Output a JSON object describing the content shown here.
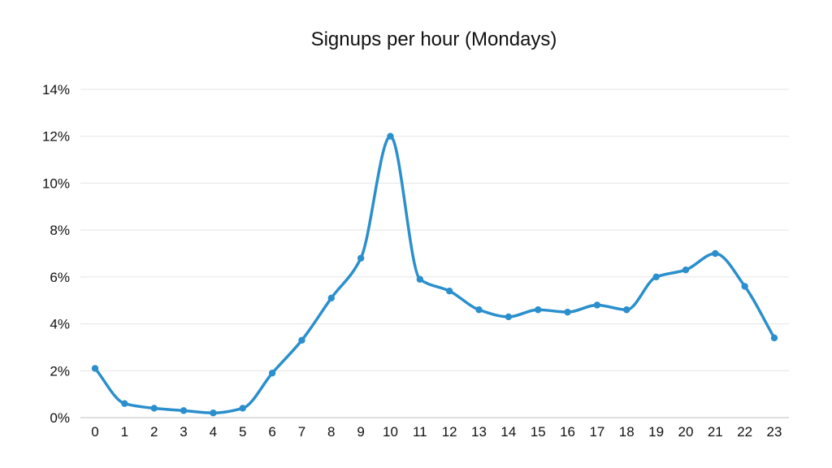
{
  "chart_data": {
    "type": "line",
    "title": "Signups per hour (Mondays)",
    "xlabel": "",
    "ylabel": "",
    "x": [
      0,
      1,
      2,
      3,
      4,
      5,
      6,
      7,
      8,
      9,
      10,
      11,
      12,
      13,
      14,
      15,
      16,
      17,
      18,
      19,
      20,
      21,
      22,
      23
    ],
    "x_tick_labels": [
      "0",
      "1",
      "2",
      "3",
      "4",
      "5",
      "6",
      "7",
      "8",
      "9",
      "10",
      "11",
      "12",
      "13",
      "14",
      "15",
      "16",
      "17",
      "18",
      "19",
      "20",
      "21",
      "22",
      "23"
    ],
    "series": [
      {
        "values": [
          2.1,
          0.6,
          0.4,
          0.3,
          0.2,
          0.4,
          1.9,
          3.3,
          5.1,
          6.8,
          12.0,
          5.9,
          5.4,
          4.6,
          4.3,
          4.6,
          4.5,
          4.8,
          4.6,
          6.0,
          6.3,
          7.0,
          5.6,
          3.4
        ],
        "color": "#2a8fcc"
      }
    ],
    "ylim": [
      0,
      14
    ],
    "y_ticks": [
      0,
      2,
      4,
      6,
      8,
      10,
      12,
      14
    ],
    "y_tick_labels": [
      "0%",
      "2%",
      "4%",
      "6%",
      "8%",
      "10%",
      "12%",
      "14%"
    ],
    "grid": true,
    "smooth": true,
    "markers": true,
    "legend": "none"
  }
}
